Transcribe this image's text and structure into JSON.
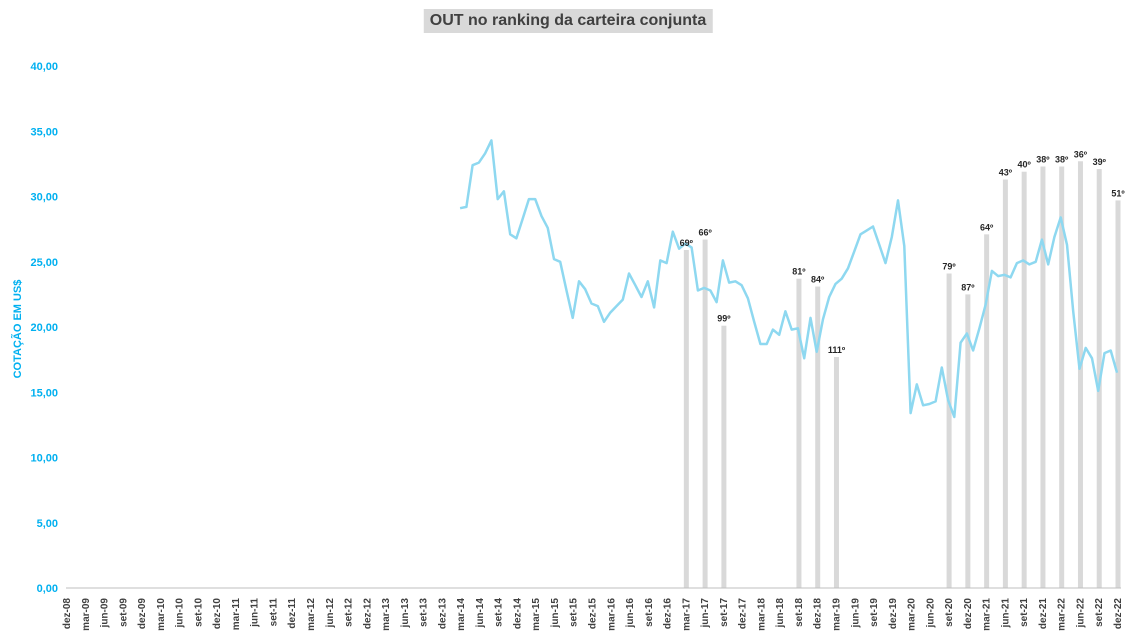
{
  "chart_data": {
    "type": "bar+line",
    "title": "OUT no ranking da carteira conjunta",
    "ylabel": "COTAÇÃO EM US$",
    "xlabel": "",
    "ylim": [
      0,
      40
    ],
    "yticks": [
      "0,00",
      "5,00",
      "10,00",
      "15,00",
      "20,00",
      "25,00",
      "30,00",
      "35,00",
      "40,00"
    ],
    "x_tick_labels": [
      "dez-08",
      "mar-09",
      "jun-09",
      "set-09",
      "dez-09",
      "mar-10",
      "jun-10",
      "set-10",
      "dez-10",
      "mar-11",
      "jun-11",
      "set-11",
      "dez-11",
      "mar-12",
      "jun-12",
      "set-12",
      "dez-12",
      "mar-13",
      "jun-13",
      "set-13",
      "dez-13",
      "mar-14",
      "jun-14",
      "set-14",
      "dez-14",
      "mar-15",
      "jun-15",
      "set-15",
      "dez-15",
      "mar-16",
      "jun-16",
      "set-16",
      "dez-16",
      "mar-17",
      "jun-17",
      "set-17",
      "dez-17",
      "mar-18",
      "jun-18",
      "set-18",
      "dez-18",
      "mar-19",
      "jun-19",
      "set-19",
      "dez-19",
      "mar-20",
      "jun-20",
      "set-20",
      "dez-20",
      "mar-21",
      "jun-21",
      "set-21",
      "dez-21",
      "mar-22",
      "jun-22",
      "set-22",
      "dez-22"
    ],
    "x_start": "dez-08",
    "grid": false,
    "legend": "none",
    "colors": {
      "line": "#8ed8f0",
      "bar": "#d9d9d9",
      "axis_text": "#00b0f0",
      "x_text": "#404040",
      "title_bg": "#d9d9d9"
    },
    "bars": [
      {
        "period": "mar-17",
        "value": 25.9,
        "label": "69º"
      },
      {
        "period": "jun-17",
        "value": 26.7,
        "label": "66º"
      },
      {
        "period": "set-17",
        "value": 20.1,
        "label": "99º"
      },
      {
        "period": "set-18",
        "value": 23.7,
        "label": "81º"
      },
      {
        "period": "dez-18",
        "value": 23.1,
        "label": "84º"
      },
      {
        "period": "mar-19",
        "value": 17.7,
        "label": "111º"
      },
      {
        "period": "set-20",
        "value": 24.1,
        "label": "79º"
      },
      {
        "period": "dez-20",
        "value": 22.5,
        "label": "87º"
      },
      {
        "period": "mar-21",
        "value": 27.1,
        "label": "64º"
      },
      {
        "period": "jun-21",
        "value": 31.3,
        "label": "43º"
      },
      {
        "period": "set-21",
        "value": 31.9,
        "label": "40º"
      },
      {
        "period": "dez-21",
        "value": 32.3,
        "label": "38º"
      },
      {
        "period": "mar-22",
        "value": 32.3,
        "label": "38º"
      },
      {
        "period": "jun-22",
        "value": 32.7,
        "label": "36º"
      },
      {
        "period": "set-22",
        "value": 32.1,
        "label": "39º"
      },
      {
        "period": "dez-22",
        "value": 29.7,
        "label": "51º"
      }
    ],
    "line_start": "mar-14",
    "line_values": [
      29.1,
      29.2,
      32.4,
      32.6,
      33.3,
      34.3,
      29.8,
      30.4,
      27.1,
      26.8,
      28.3,
      29.8,
      29.8,
      28.5,
      27.6,
      25.2,
      25.0,
      22.8,
      20.7,
      23.5,
      22.9,
      21.8,
      21.6,
      20.4,
      21.1,
      21.6,
      22.1,
      24.1,
      23.2,
      22.3,
      23.5,
      21.5,
      25.1,
      24.9,
      27.3,
      26.0,
      26.4,
      26.1,
      22.8,
      23.0,
      22.8,
      21.9,
      25.1,
      23.4,
      23.5,
      23.2,
      22.2,
      20.4,
      18.7,
      18.7,
      19.8,
      19.4,
      21.2,
      19.8,
      19.9,
      17.6,
      20.7,
      18.1,
      20.6,
      22.3,
      23.3,
      23.7,
      24.5,
      25.8,
      27.1,
      27.4,
      27.7,
      26.3,
      24.9,
      26.9,
      29.7,
      26.2,
      13.4,
      15.6,
      14.0,
      14.1,
      14.3,
      16.9,
      14.4,
      13.1,
      18.8,
      19.5,
      18.2,
      19.9,
      21.7,
      24.3,
      23.9,
      24.0,
      23.8,
      24.9,
      25.1,
      24.8,
      25.0,
      26.7,
      24.8,
      26.9,
      28.4,
      26.3,
      21.2,
      16.8,
      18.4,
      17.6,
      15.1,
      18.0,
      18.2,
      16.5
    ]
  }
}
